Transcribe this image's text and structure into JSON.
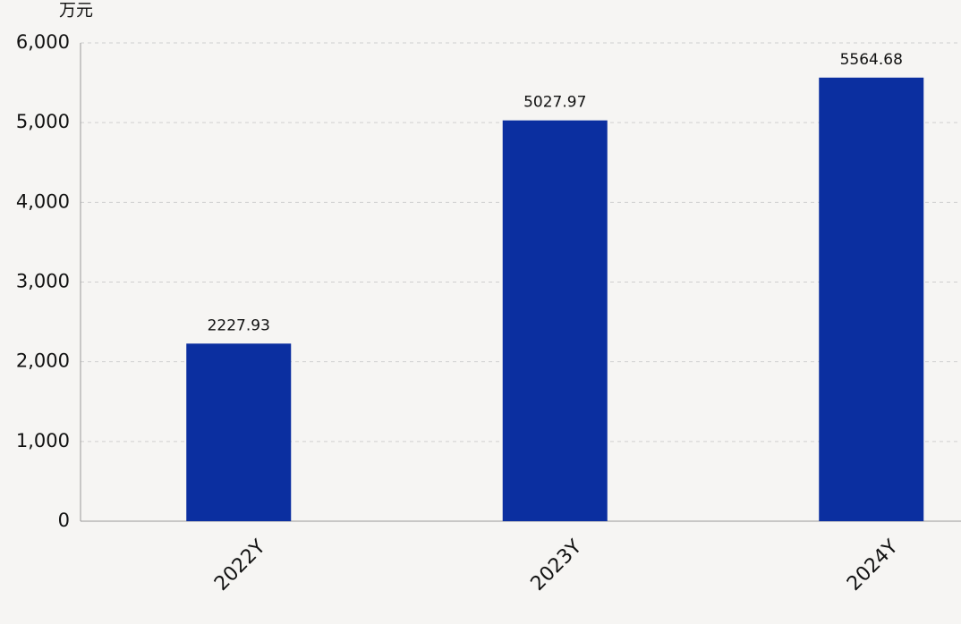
{
  "chart_data": {
    "type": "bar",
    "y_label": "万元",
    "categories": [
      "2022Y",
      "2023Y",
      "2024Y"
    ],
    "values": [
      2227.93,
      5027.97,
      5564.68
    ],
    "color": "#0b2fa0",
    "ylim": [
      0,
      6000
    ],
    "yticks": [
      0,
      {
        "value": 1000,
        "label": "1,000"
      },
      {
        "value": 2000,
        "label": "2,000"
      },
      {
        "value": 3000,
        "label": "3,000"
      },
      {
        "value": 4000,
        "label": "4,000"
      },
      {
        "value": 5000,
        "label": "5,000"
      },
      {
        "value": 6000,
        "label": "6,000"
      }
    ],
    "grid": true
  }
}
